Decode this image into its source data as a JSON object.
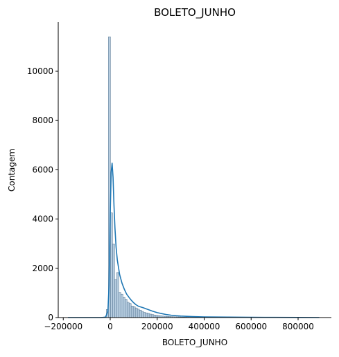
{
  "chart_data": {
    "type": "histogram",
    "title": "BOLETO_JUNHO",
    "xlabel": "BOLETO_JUNHO",
    "ylabel": "Contagem",
    "xlim": [
      -220000,
      900000
    ],
    "ylim": [
      0,
      12000
    ],
    "x_ticks": [
      -200000,
      0,
      200000,
      400000,
      600000,
      800000
    ],
    "x_tick_labels": [
      "−200000",
      "0",
      "200000",
      "400000",
      "600000",
      "800000"
    ],
    "y_ticks": [
      0,
      2000,
      4000,
      6000,
      8000,
      10000
    ],
    "y_tick_labels": [
      "0",
      "2000",
      "4000",
      "6000",
      "8000",
      "10000"
    ],
    "grid": false,
    "legend": "none",
    "bin_width": 8800,
    "bins_start": -16500,
    "counts": [
      330,
      11400,
      4250,
      2980,
      1550,
      1830,
      1020,
      950,
      830,
      740,
      620,
      570,
      470,
      440,
      390,
      340,
      300,
      250,
      210,
      190,
      170,
      140,
      120,
      100,
      90,
      80,
      70,
      60,
      55,
      50,
      45,
      40,
      36,
      32,
      29,
      26,
      23,
      21,
      19,
      17,
      15,
      14,
      12,
      11,
      10,
      9,
      8,
      8,
      7,
      7,
      6,
      6,
      5,
      5,
      5,
      4,
      4,
      4,
      3,
      3,
      3,
      3,
      2,
      2,
      2,
      2,
      2,
      2,
      2,
      1,
      1,
      1,
      1,
      1,
      1,
      1,
      1,
      1,
      1,
      1,
      1,
      1,
      1,
      1,
      1,
      1,
      1,
      1,
      1,
      1,
      1,
      1,
      1,
      1,
      1,
      1,
      1,
      1,
      1,
      1,
      1
    ],
    "kde": {
      "x": [
        -180000,
        -40000,
        -20000,
        -10000,
        -5000,
        0,
        4000,
        8000,
        12000,
        16000,
        20000,
        25000,
        30000,
        40000,
        50000,
        60000,
        70000,
        80000,
        90000,
        100000,
        110000,
        120000,
        140000,
        160000,
        180000,
        200000,
        220000,
        240000,
        260000,
        280000,
        300000,
        350000,
        400000,
        500000,
        600000,
        700000,
        800000,
        890000
      ],
      "y": [
        0,
        0,
        20,
        250,
        1300,
        4200,
        5900,
        6270,
        5700,
        4550,
        3650,
        2850,
        2350,
        1750,
        1400,
        1150,
        950,
        820,
        700,
        600,
        520,
        460,
        400,
        330,
        260,
        200,
        160,
        120,
        95,
        75,
        60,
        40,
        28,
        18,
        12,
        8,
        5,
        0
      ]
    },
    "colors": {
      "bar_fill": "#a9c3d9",
      "bar_stroke": "#4a6c8a",
      "kde_line": "#1f77b4"
    }
  }
}
